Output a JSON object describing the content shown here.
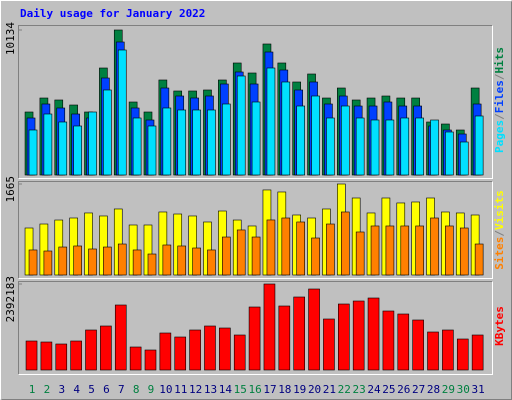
{
  "chart_data": {
    "type": "bar",
    "title": "Daily usage for January 2022",
    "categories": [
      "1",
      "2",
      "3",
      "4",
      "5",
      "6",
      "7",
      "8",
      "9",
      "10",
      "11",
      "12",
      "13",
      "14",
      "15",
      "16",
      "17",
      "18",
      "19",
      "20",
      "21",
      "22",
      "23",
      "24",
      "25",
      "26",
      "27",
      "28",
      "29",
      "30",
      "31"
    ],
    "category_colors": [
      "#008040",
      "#008040",
      "#000080",
      "#000080",
      "#000080",
      "#000080",
      "#000080",
      "#008040",
      "#008040",
      "#000080",
      "#000080",
      "#000080",
      "#000080",
      "#000080",
      "#008040",
      "#008040",
      "#000080",
      "#000080",
      "#000080",
      "#000080",
      "#000080",
      "#008040",
      "#008040",
      "#000080",
      "#000080",
      "#000080",
      "#000080",
      "#000080",
      "#008040",
      "#008040",
      "#000080"
    ],
    "legend_separator": "/",
    "panels": [
      {
        "ylim": [
          0,
          10134
        ],
        "yticks": [
          10134
        ],
        "series": [
          {
            "name": "Hits",
            "color": "#008040",
            "values": [
              4403,
              5381,
              5242,
              4892,
              4403,
              7478,
              10134,
              5102,
              4403,
              6640,
              5871,
              5871,
              5941,
              6640,
              7828,
              7129,
              9156,
              7828,
              6500,
              7059,
              5381,
              6080,
              5242,
              5381,
              5521,
              5381,
              5381,
              3704,
              3564,
              3145,
              6080
            ]
          },
          {
            "name": "Files",
            "color": "#0040ff",
            "values": [
              3984,
              4962,
              4683,
              4263,
              3984,
              6779,
              9295,
              4683,
              3844,
              6080,
              5521,
              5382,
              5521,
              6360,
              7199,
              6360,
              8596,
              7338,
              5941,
              6500,
              4962,
              5521,
              4822,
              4822,
              5102,
              4822,
              4822,
              3425,
              3145,
              2865,
              4962
            ]
          },
          {
            "name": "Pages",
            "color": "#00e0ff",
            "values": [
              3145,
              4263,
              3704,
              3425,
              4403,
              5941,
              8736,
              3984,
              3425,
              4683,
              4543,
              4543,
              4543,
              4962,
              6919,
              5102,
              7478,
              6500,
              4822,
              5521,
              3984,
              4822,
              3984,
              3844,
              3844,
              3984,
              3984,
              3844,
              3005,
              2306,
              4124
            ]
          }
        ]
      },
      {
        "ylim": [
          0,
          1665
        ],
        "yticks": [
          1665
        ],
        "series": [
          {
            "name": "Visits",
            "color": "#ffff00",
            "values": [
              860,
              933,
              1006,
              1043,
              1135,
              1080,
              1208,
              915,
              915,
              1153,
              1116,
              1080,
              970,
              1171,
              1006,
              897,
              1556,
              1519,
              1098,
              1043,
              1208,
              1665,
              1409,
              1135,
              1409,
              1318,
              1336,
              1409,
              1153,
              1135,
              1098
            ]
          },
          {
            "name": "Sites",
            "color": "#ff8000",
            "values": [
              458,
              439,
              512,
              531,
              476,
              512,
              567,
              458,
              384,
              549,
              531,
              494,
              458,
              695,
              824,
              695,
              1007,
              1043,
              970,
              677,
              933,
              1153,
              787,
              897,
              897,
              897,
              897,
              1043,
              897,
              860,
              567
            ]
          }
        ]
      },
      {
        "ylim": [
          0,
          2392183
        ],
        "yticks": [
          2392183
        ],
        "series": [
          {
            "name": "KBytes",
            "color": "#ff0000",
            "values": [
              806664,
              778848,
              723216,
              806664,
              1112640,
              1223904,
              1808040,
              639768,
              556320,
              1029192,
              917928,
              1112640,
              1223904,
              1168272,
              973560,
              1752408,
              2392183,
              1780224,
              2030568,
              2253096,
              1418616,
              1835856,
              1919304,
              2002752,
              1641144,
              1557696,
              1390800,
              1057008,
              1112640,
              862296,
              973560
            ]
          }
        ]
      }
    ]
  }
}
